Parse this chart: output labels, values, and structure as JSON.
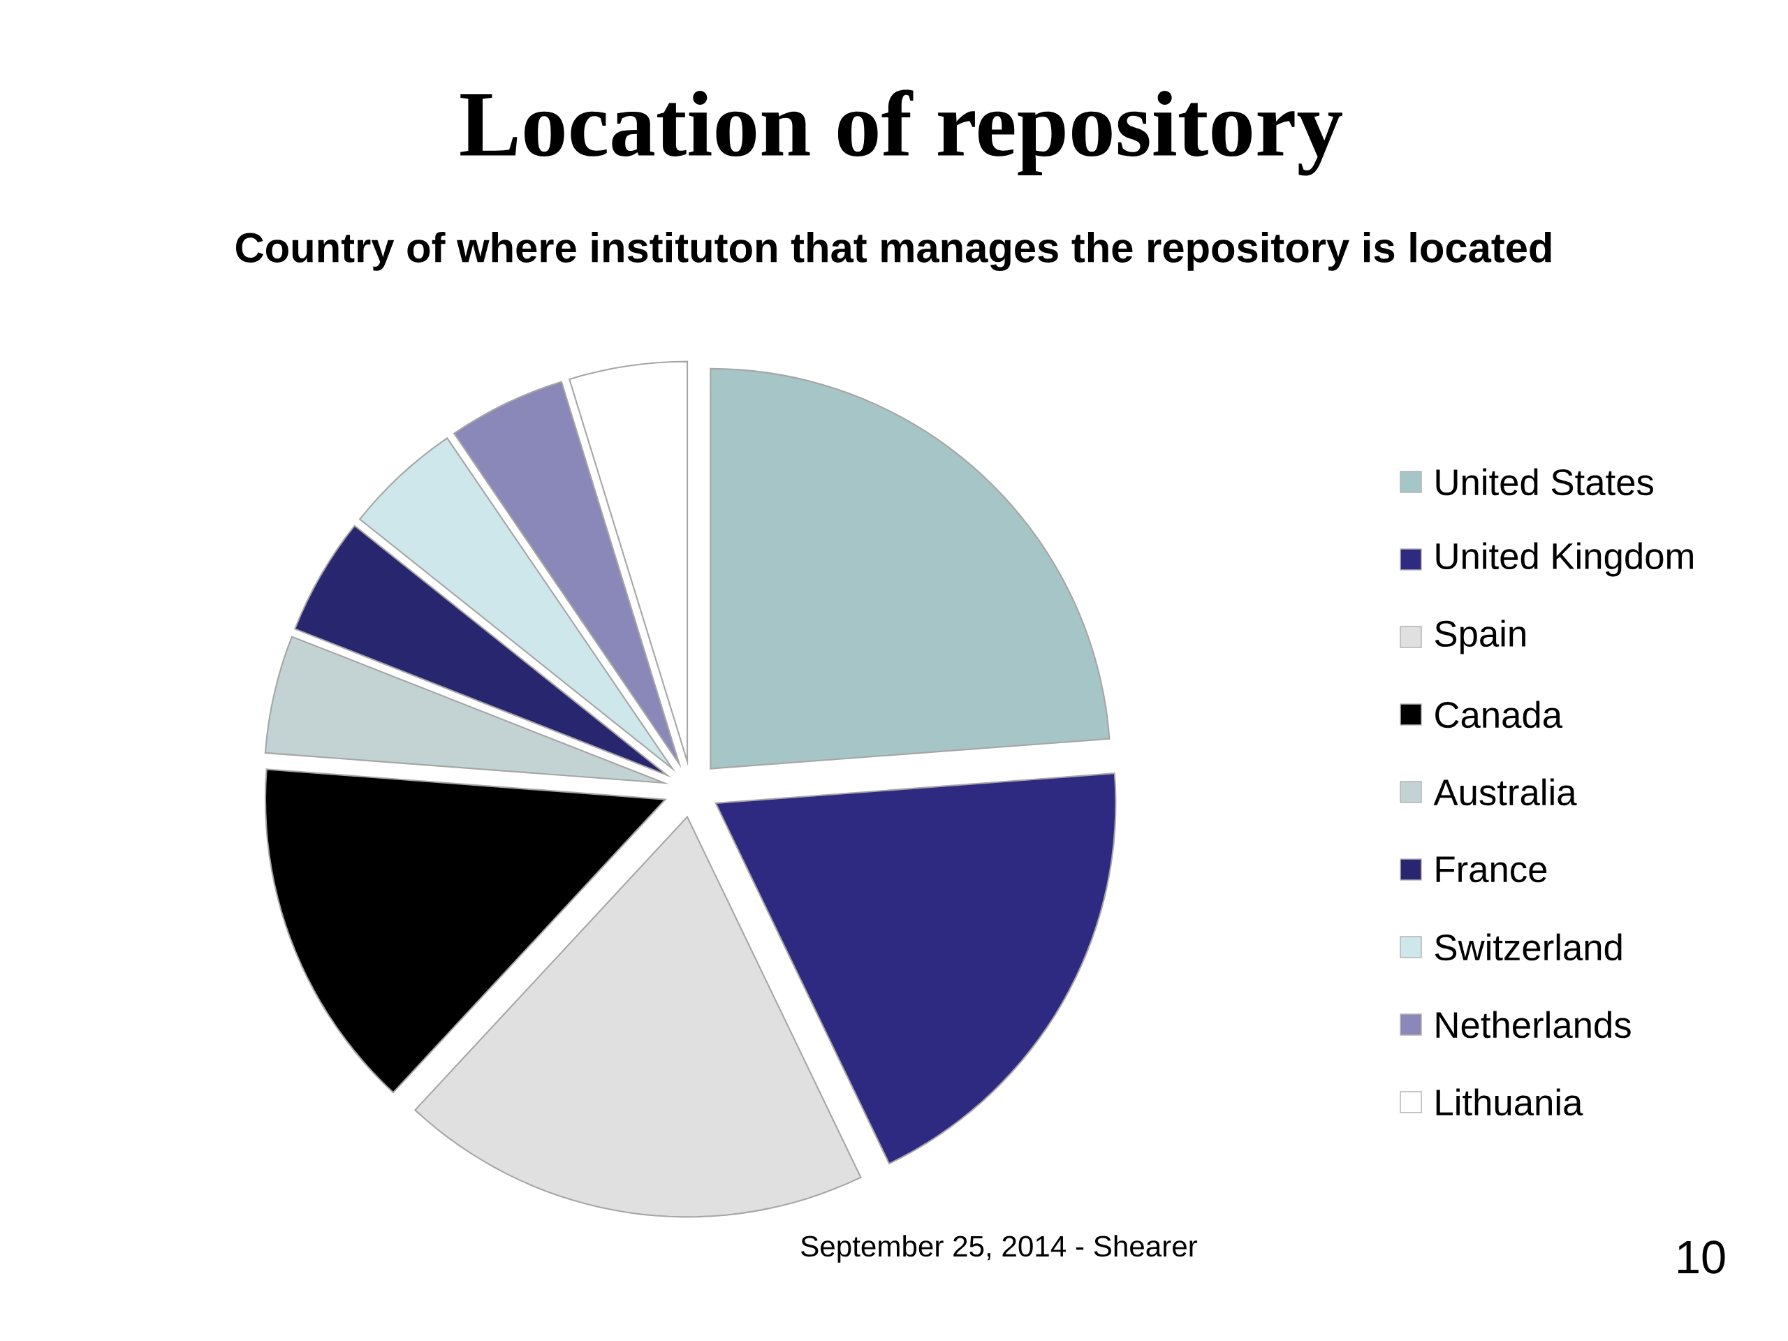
{
  "chart_data": {
    "type": "pie",
    "title": "Location of repository",
    "subtitle": "Country of where instituton that manages the repository is located",
    "categories": [
      "United States",
      "United Kingdom",
      "Spain",
      "Canada",
      "Australia",
      "France",
      "Switzerland",
      "Netherlands",
      "Lithuania"
    ],
    "values": [
      23.81,
      19.05,
      19.05,
      14.29,
      4.76,
      4.76,
      4.76,
      4.76,
      4.76
    ],
    "colors": [
      "#a6c5c6",
      "#2e2a82",
      "#e0e0e0",
      "#000000",
      "#c3d3d4",
      "#28266e",
      "#cde7ea",
      "#8a88b8",
      "#ffffff"
    ],
    "legend": "right",
    "annotations": [
      "September 25, 2014 - Shearer",
      "10"
    ]
  }
}
